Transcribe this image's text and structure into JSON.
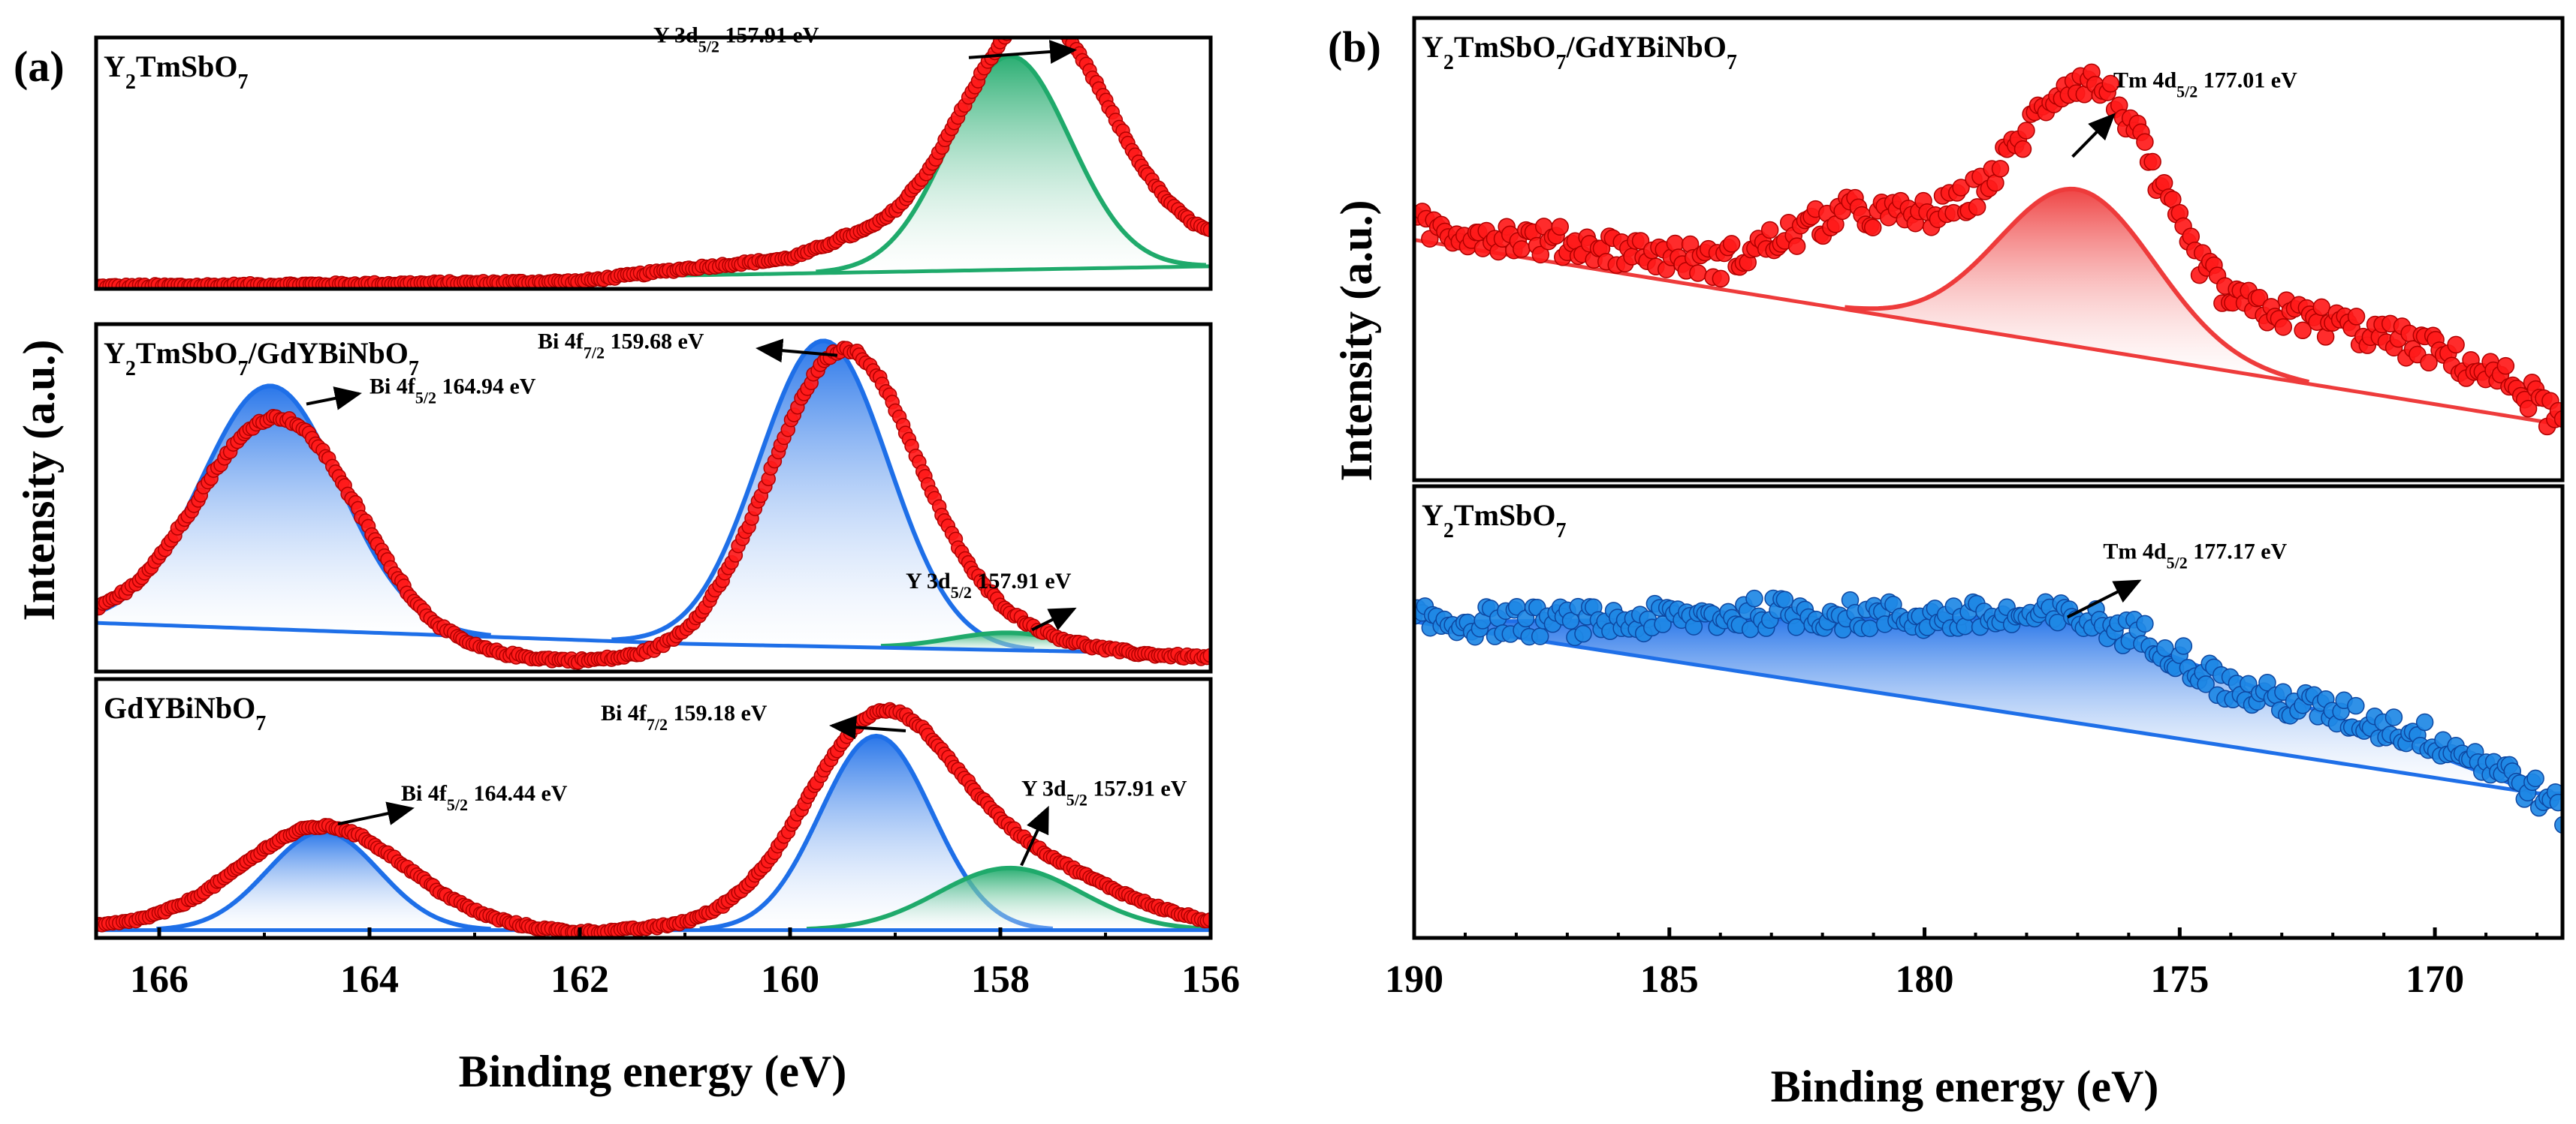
{
  "figure": {
    "panel_labels": [
      "(a)",
      "(b)"
    ],
    "colors": {
      "data_red": "#ff1a1a",
      "data_red_edge": "#b00000",
      "data_blue": "#1e88e5",
      "data_blue_edge": "#0d47a1",
      "fit_blue": "#1e6fe8",
      "fit_green": "#1faa6b",
      "fit_red": "#ee3b3b",
      "axis": "#000000"
    }
  },
  "chart_data": [
    {
      "type": "line",
      "id": "a",
      "panel_label": "(a)",
      "xlabel": "Binding energy (eV)",
      "ylabel": "Intensity (a.u.)",
      "xlim": [
        166.6,
        156
      ],
      "x_reversed": true,
      "xticks": [
        166,
        164,
        162,
        160,
        158,
        156
      ],
      "xtick_labels": [
        "166",
        "164",
        "162",
        "160",
        "158",
        "156"
      ],
      "subpanels": [
        {
          "title": "Y2TmSbO7",
          "title_parts": [
            [
              "Y",
              ""
            ],
            [
              "2",
              "sub"
            ],
            [
              "TmSbO",
              ""
            ],
            [
              "7",
              "sub"
            ]
          ],
          "ylim": [
            0,
            1
          ],
          "baseline": [
            [
              166.6,
              0.02
            ],
            [
              161.5,
              0.05
            ],
            [
              156,
              0.09
            ]
          ],
          "fit_color": "fit_green",
          "data_color": "data_red",
          "data_background": [
            [
              166.6,
              0.01
            ],
            [
              164,
              0.02
            ],
            [
              162,
              0.03
            ],
            [
              161,
              0.08
            ],
            [
              160,
              0.12
            ],
            [
              159.5,
              0.18
            ]
          ],
          "peaks": [
            {
              "center": 157.91,
              "amplitude": 0.85,
              "fwhm": 1.35,
              "data_amplitude": 0.9,
              "data_width_scale": 1.2,
              "data_center_shift": -0.25,
              "fill": "green",
              "label": "Y 3d",
              "label_sub": "5/2",
              "label_value": " 157.91 eV",
              "arrow_from": [
                158.3,
                0.92
              ],
              "arrow_to": [
                157.3,
                0.95
              ],
              "label_at": [
                161.3,
                0.98
              ]
            }
          ]
        },
        {
          "title": "Y2TmSbO7/GdYBiNbO7",
          "title_parts": [
            [
              "Y",
              ""
            ],
            [
              "2",
              "sub"
            ],
            [
              "TmSbO",
              ""
            ],
            [
              "7",
              "sub"
            ],
            [
              "/GdYBiNbO",
              ""
            ],
            [
              "7",
              "sub"
            ]
          ],
          "ylim": [
            0,
            1
          ],
          "baseline": [
            [
              166.6,
              0.14
            ],
            [
              161,
              0.08
            ],
            [
              156,
              0.05
            ]
          ],
          "fit_color": "fit_blue",
          "data_color": "data_red",
          "data_background": [
            [
              166.6,
              0.14
            ],
            [
              165.5,
              0.14
            ],
            [
              163.5,
              0.05
            ],
            [
              162,
              0.03
            ],
            [
              160,
              0.04
            ],
            [
              158,
              0.06
            ],
            [
              156,
              0.04
            ]
          ],
          "peaks": [
            {
              "center": 164.94,
              "amplitude": 0.7,
              "fwhm": 1.55,
              "data_amplitude": 0.62,
              "data_width_scale": 1.15,
              "data_center_shift": -0.1,
              "fill": "blue",
              "label": "Bi 4f",
              "label_sub": "5/2",
              "label_value": " 164.94 eV",
              "arrow_from": [
                164.6,
                0.77
              ],
              "arrow_to": [
                164.1,
                0.8
              ],
              "label_at": [
                164.0,
                0.8
              ]
            },
            {
              "center": 159.68,
              "amplitude": 0.88,
              "fwhm": 1.45,
              "data_amplitude": 0.88,
              "data_width_scale": 1.15,
              "data_center_shift": -0.2,
              "fill": "blue",
              "label": "Bi 4f",
              "label_sub": "7/2",
              "label_value": " 159.68 eV",
              "arrow_from": [
                159.55,
                0.91
              ],
              "arrow_to": [
                160.3,
                0.93
              ],
              "label_at": [
                162.4,
                0.93
              ]
            },
            {
              "center": 157.91,
              "amplitude": 0.05,
              "fwhm": 1.3,
              "data_amplitude": 0.04,
              "data_width_scale": 1.1,
              "data_center_shift": 0.0,
              "fill": "green",
              "label": "Y 3d",
              "label_sub": "5/2",
              "label_value": " 157.91 eV",
              "arrow_from": [
                157.7,
                0.12
              ],
              "arrow_to": [
                157.3,
                0.18
              ],
              "label_at": [
                158.9,
                0.24
              ]
            }
          ]
        },
        {
          "title": "GdYBiNbO7",
          "title_parts": [
            [
              "GdYBiNbO",
              ""
            ],
            [
              "7",
              "sub"
            ]
          ],
          "ylim": [
            0,
            1
          ],
          "baseline": [
            [
              166.6,
              0.03
            ],
            [
              156,
              0.03
            ]
          ],
          "fit_color": "fit_blue",
          "data_color": "data_red",
          "data_background": [
            [
              166.6,
              0.04
            ],
            [
              165.5,
              0.05
            ],
            [
              163.5,
              0.05
            ],
            [
              162,
              0.02
            ],
            [
              160.5,
              0.05
            ],
            [
              156,
              0.03
            ]
          ],
          "peaks": [
            {
              "center": 164.44,
              "amplitude": 0.38,
              "fwhm": 1.25,
              "data_amplitude": 0.38,
              "data_width_scale": 1.45,
              "data_center_shift": 0.0,
              "fill": "blue",
              "label": "Bi 4f",
              "label_sub": "5/2",
              "label_value": " 164.44 eV",
              "arrow_from": [
                164.3,
                0.44
              ],
              "arrow_to": [
                163.6,
                0.5
              ],
              "label_at": [
                163.7,
                0.53
              ]
            },
            {
              "center": 159.18,
              "amplitude": 0.75,
              "fwhm": 1.25,
              "data_amplitude": 0.72,
              "data_width_scale": 1.3,
              "data_center_shift": 0.0,
              "fill": "blue",
              "label": "Bi 4f",
              "label_sub": "7/2",
              "label_value": " 159.18 eV",
              "arrow_from": [
                158.9,
                0.8
              ],
              "arrow_to": [
                159.6,
                0.82
              ],
              "label_at": [
                161.8,
                0.84
              ]
            },
            {
              "center": 157.91,
              "amplitude": 0.24,
              "fwhm": 1.6,
              "data_amplitude": 0.26,
              "data_width_scale": 1.4,
              "data_center_shift": 0.0,
              "fill": "green",
              "label": "Y 3d",
              "label_sub": "5/2",
              "label_value": " 157.91 eV",
              "arrow_from": [
                157.8,
                0.28
              ],
              "arrow_to": [
                157.55,
                0.5
              ],
              "label_at": [
                157.8,
                0.55
              ]
            }
          ]
        }
      ]
    },
    {
      "type": "line",
      "id": "b",
      "panel_label": "(b)",
      "xlabel": "Binding energy (eV)",
      "ylabel": "Intensity (a.u.)",
      "xlim": [
        190,
        167.5
      ],
      "x_reversed": true,
      "xticks": [
        190,
        185,
        180,
        175,
        170
      ],
      "xtick_labels": [
        "190",
        "185",
        "180",
        "175",
        "170"
      ],
      "subpanels": [
        {
          "title": "Y2TmSbO7/GdYBiNbO7",
          "title_parts": [
            [
              "Y",
              ""
            ],
            [
              "2",
              "sub"
            ],
            [
              "TmSbO",
              ""
            ],
            [
              "7",
              "sub"
            ],
            [
              "/GdYBiNbO",
              ""
            ],
            [
              "7",
              "sub"
            ]
          ],
          "ylim": [
            0,
            1
          ],
          "baseline": [
            [
              190,
              0.52
            ],
            [
              167.5,
              0.12
            ]
          ],
          "fit_color": "fit_red",
          "data_color": "data_red",
          "data_background": [
            [
              190,
              0.55
            ],
            [
              186,
              0.5
            ],
            [
              184,
              0.47
            ],
            [
              181.5,
              0.58
            ],
            [
              179.5,
              0.56
            ],
            [
              178,
              0.55
            ],
            [
              176,
              0.58
            ],
            [
              174,
              0.38
            ],
            [
              172,
              0.34
            ],
            [
              170,
              0.28
            ],
            [
              168.3,
              0.2
            ],
            [
              167.5,
              0.12
            ]
          ],
          "peaks": [
            {
              "center": 177.01,
              "amplitude": 0.34,
              "fwhm": 3.6,
              "data_amplitude": 0.3,
              "data_width_scale": 0.75,
              "data_center_shift": 0.0,
              "fill": "red",
              "label": "Tm 4d",
              "label_sub": "5/2",
              "label_value": " 177.01 eV",
              "arrow_from": [
                177.1,
                0.7
              ],
              "arrow_to": [
                176.3,
                0.79
              ],
              "label_at": [
                176.3,
                0.85
              ]
            }
          ]
        },
        {
          "title": "Y2TmSbO7",
          "title_parts": [
            [
              "Y",
              ""
            ],
            [
              "2",
              "sub"
            ],
            [
              "TmSbO",
              ""
            ],
            [
              "7",
              "sub"
            ]
          ],
          "ylim": [
            0,
            1
          ],
          "baseline": [
            [
              190,
              0.7
            ],
            [
              168,
              0.32
            ]
          ],
          "fit_color": "fit_blue",
          "data_color": "data_blue",
          "data_background": [
            [
              190,
              0.7
            ],
            [
              186,
              0.7
            ],
            [
              183,
              0.72
            ],
            [
              180,
              0.71
            ],
            [
              177,
              0.71
            ],
            [
              175.5,
              0.66
            ],
            [
              174,
              0.55
            ],
            [
              172,
              0.5
            ],
            [
              170,
              0.44
            ],
            [
              168.5,
              0.36
            ],
            [
              167.5,
              0.28
            ]
          ],
          "peaks": [
            {
              "center": 177.17,
              "amplitude": 0.1,
              "fwhm": 8.0,
              "data_amplitude": 0.0,
              "data_width_scale": 1.0,
              "data_center_shift": 0.0,
              "fill": "blue",
              "fit_shape": "triangle",
              "triangle_points": [
                [
                  190,
                  0.7
                ],
                [
                  177.17,
                  0.71
                ],
                [
                  168,
                  0.32
                ]
              ],
              "label": "Tm 4d",
              "label_sub": "5/2",
              "label_value": " 177.17 eV",
              "arrow_from": [
                177.2,
                0.71
              ],
              "arrow_to": [
                175.8,
                0.79
              ],
              "label_at": [
                176.5,
                0.84
              ]
            }
          ]
        }
      ]
    }
  ]
}
